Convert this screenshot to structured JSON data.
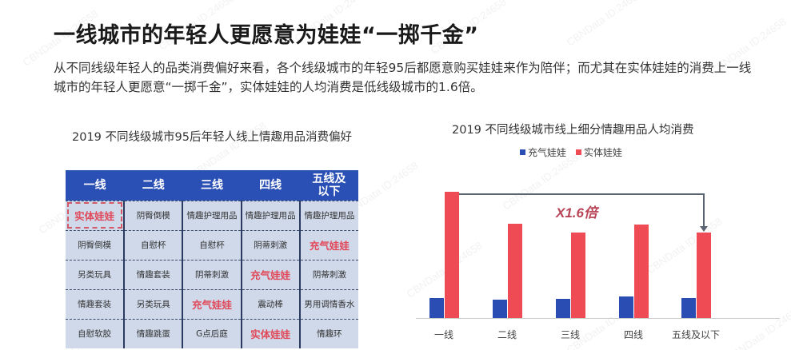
{
  "header": {
    "title": "一线城市的年轻人更愿意为娃娃“一掷千金”",
    "description": "从不同线级年轻人的品类消费偏好来看，各个线级城市的年轻95后都愿意购买娃娃来作为陪伴；而尤其在实体娃娃的消费上一线城市的年轻人更愿意“一掷千金”，实体娃娃的人均消费是低线级城市的1.6倍。"
  },
  "watermark": "CBNData ID:24658",
  "table": {
    "title": "2019 不同线级城市95后年轻人线上情趣用品消费偏好",
    "headers": [
      "一线",
      "二线",
      "三线",
      "四线",
      "五线及以下"
    ],
    "rows": [
      [
        "实体娃娃",
        "阴臀倒模",
        "情趣护理用品",
        "情趣护理用品",
        "情趣护理用品"
      ],
      [
        "阴臀倒模",
        "自慰杯",
        "自慰杯",
        "阴蒂刺激",
        "充气娃娃"
      ],
      [
        "另类玩具",
        "情趣套装",
        "阴蒂刺激",
        "充气娃娃",
        "阴蒂刺激"
      ],
      [
        "情趣套装",
        "另类玩具",
        "充气娃娃",
        "震动棒",
        "男用调情香水"
      ],
      [
        "自慰软胶",
        "情趣跳蛋",
        "G点后庭",
        "实体娃娃",
        "情趣环"
      ]
    ],
    "highlight_terms": [
      "实体娃娃",
      "充气娃娃"
    ],
    "header_color": "#2b50b5",
    "cell_color": "#cfd9ea",
    "highlight_color": "#e04a5a"
  },
  "chart_data": {
    "type": "bar",
    "title": "2019 不同线级城市线上细分情趣用品人均消费",
    "categories": [
      "一线",
      "二线",
      "三线",
      "四线",
      "五线及以下"
    ],
    "series": [
      {
        "name": "充气娃娃",
        "color": "#2a4db3",
        "values": [
          25,
          23,
          24,
          27,
          25
        ]
      },
      {
        "name": "实体娃娃",
        "color": "#ee4b55",
        "values": [
          158,
          118,
          107,
          117,
          107
        ]
      }
    ],
    "xlabel": "",
    "ylabel": "",
    "ylim": [
      0,
      165
    ],
    "grid": false,
    "legend_position": "top",
    "annotation": "X1.6倍",
    "note": "No numeric axis shown; values are relative bar heights in pixels"
  }
}
